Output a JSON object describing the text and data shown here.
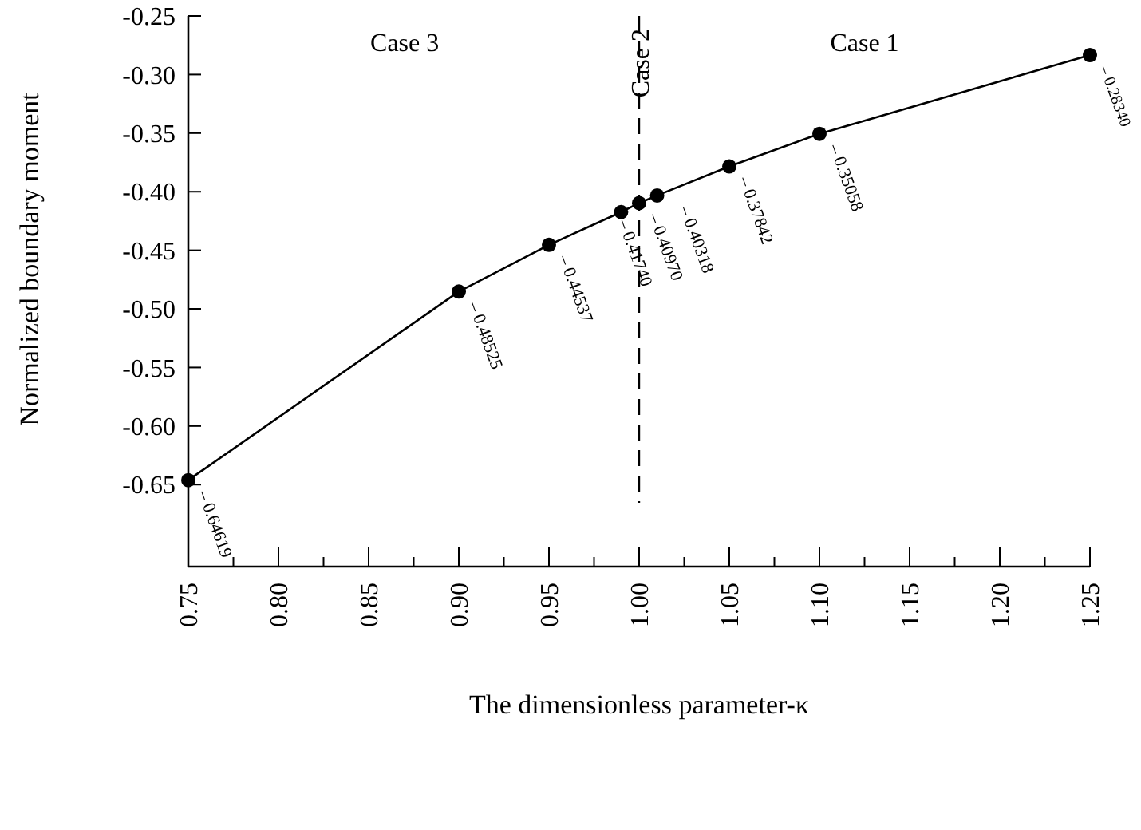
{
  "chart_data": {
    "type": "line",
    "xlabel": "The dimensionless parameter-κ",
    "ylabel": "Normalized boundary moment",
    "x": [
      0.75,
      0.9,
      0.95,
      0.99,
      1.0,
      1.01,
      1.05,
      1.1,
      1.25
    ],
    "values": [
      -0.64619,
      -0.48525,
      -0.44537,
      -0.4174,
      -0.4097,
      -0.40318,
      -0.37842,
      -0.35058,
      -0.2834
    ],
    "value_labels": [
      "– 0.64619",
      "– 0.48525",
      "– 0.44537",
      "– 0.41740",
      "– 0.40970",
      "– 0.40318",
      "– 0.37842",
      "– 0.35058",
      "– 0.28340"
    ],
    "color": "#000000",
    "marker": "circle",
    "line_style": "solid",
    "xlim": [
      0.75,
      1.25
    ],
    "xticks": [
      0.75,
      {
        "value": 0.775,
        "label": null
      },
      {
        "value": 0.8,
        "label": "0.80"
      },
      {
        "value": 0.825,
        "label": null
      },
      0.85,
      {
        "value": 0.875,
        "label": null
      },
      {
        "value": 0.9,
        "label": "0.90"
      },
      {
        "value": 0.925,
        "label": null
      },
      0.95,
      {
        "value": 0.975,
        "label": null
      },
      {
        "value": 1.0,
        "label": "1.00"
      },
      {
        "value": 1.025,
        "label": null
      },
      1.05,
      {
        "value": 1.075,
        "label": null
      },
      {
        "value": 1.1,
        "label": "1.10"
      },
      {
        "value": 1.125,
        "label": null
      },
      1.15,
      {
        "value": 1.175,
        "label": null
      },
      {
        "value": 1.2,
        "label": "1.20"
      },
      {
        "value": 1.225,
        "label": null
      },
      1.25
    ],
    "ylim": [
      -0.72,
      -0.25
    ],
    "yticks": [
      -0.65,
      {
        "value": -0.6,
        "label": "-0.60"
      },
      -0.55,
      {
        "value": -0.5,
        "label": "-0.50"
      },
      -0.45,
      {
        "value": -0.4,
        "label": "-0.40"
      },
      -0.35,
      {
        "value": -0.3,
        "label": "-0.30"
      },
      -0.25
    ],
    "ref_lines": [
      {
        "axis": "x",
        "value": 1.0,
        "label": "Case 2",
        "line_style": "dashed"
      }
    ],
    "annotations": [
      "Case 3",
      "Case 1"
    ],
    "grid": false
  }
}
